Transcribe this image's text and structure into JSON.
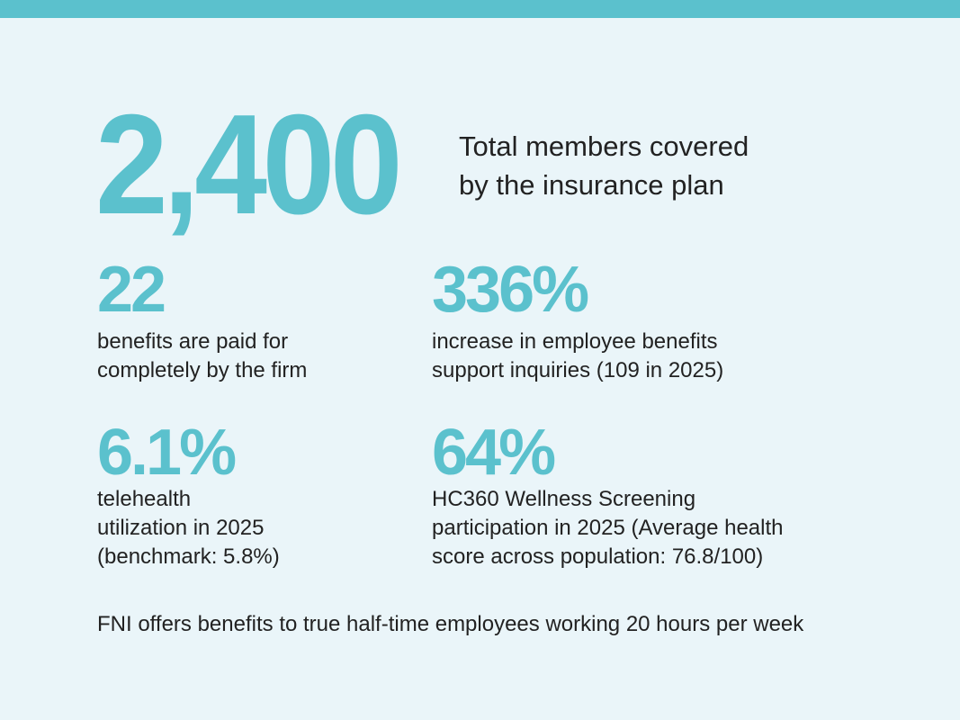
{
  "colors": {
    "accent": "#5bc1cd",
    "background": "#eaf5f9",
    "text": "#222222"
  },
  "hero": {
    "value": "2,400",
    "label": "Total members covered\nby the insurance plan"
  },
  "stats": [
    {
      "value": "22",
      "label": "benefits are paid for\ncompletely by the firm"
    },
    {
      "value": "336%",
      "label": "increase in employee benefits\nsupport inquiries (109 in 2025)"
    },
    {
      "value": "6.1%",
      "label": "telehealth\nutilization in 2025\n(benchmark: 5.8%)"
    },
    {
      "value": "64%",
      "label": "HC360 Wellness Screening\nparticipation in 2025 (Average health\nscore across population: 76.8/100)"
    }
  ],
  "footer": {
    "note": "FNI offers benefits to true half-time employees working 20 hours per week"
  }
}
